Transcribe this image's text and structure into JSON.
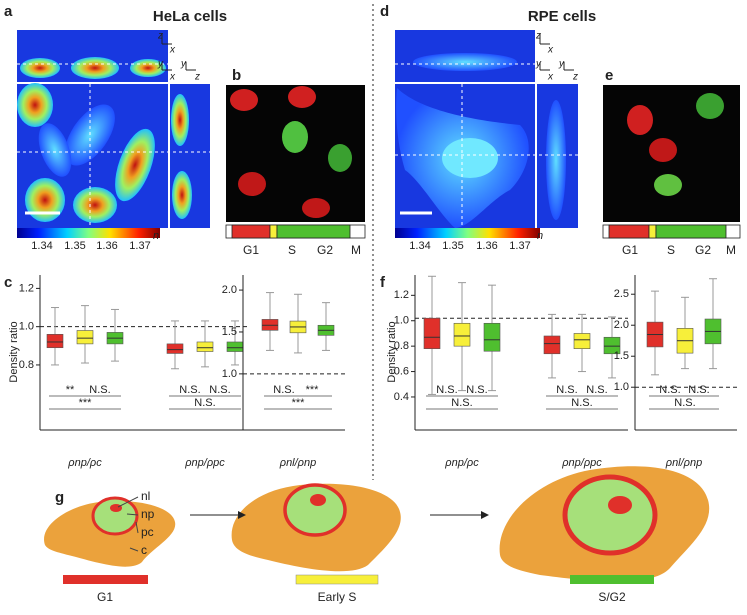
{
  "figure": {
    "panel_a": {
      "letter": "a",
      "title": "HeLa cells",
      "axes_xz": [
        "z",
        "x"
      ],
      "axes_yx": [
        "y",
        "x"
      ],
      "axes_yz": [
        "y",
        "z"
      ],
      "colorbar_ticks": [
        1.34,
        1.35,
        1.36,
        1.37
      ],
      "colorbar_unit": "n"
    },
    "panel_b": {
      "letter": "b",
      "phases": [
        "G1",
        "S",
        "G2",
        "M"
      ]
    },
    "panel_c": {
      "letter": "c"
    },
    "panel_d": {
      "letter": "d",
      "title": "RPE cells",
      "axes_xz": [
        "z",
        "x"
      ],
      "axes_yx": [
        "y",
        "x"
      ],
      "axes_yz": [
        "y",
        "z"
      ],
      "colorbar_ticks": [
        1.34,
        1.35,
        1.36,
        1.37
      ],
      "colorbar_unit": "n"
    },
    "panel_e": {
      "letter": "e",
      "phases": [
        "G1",
        "S",
        "G2",
        "M"
      ]
    },
    "panel_f": {
      "letter": "f"
    },
    "panel_g": {
      "letter": "g",
      "compartments": [
        "nl",
        "np",
        "pc",
        "c"
      ],
      "stages": [
        "G1",
        "Early S",
        "S/G2"
      ]
    }
  },
  "chart_data": [
    {
      "type": "box",
      "ylabel": "Density ratio",
      "ylim": [
        0.46,
        1.27
      ],
      "yticks": [
        0.8,
        {
          "value": 1,
          "label": "1.0"
        },
        1.2
      ],
      "reference_line": 1,
      "colors": [
        "#e0302a",
        "#f7ef3a",
        "#4fbf2f"
      ],
      "categories": [
        "ρnp/ρc",
        "ρnp/ρpc"
      ],
      "boxes": [
        [
          {
            "median": 0.92,
            "q1": 0.89,
            "q3": 0.96,
            "low": 0.8,
            "high": 1.1
          },
          {
            "median": 0.94,
            "q1": 0.91,
            "q3": 0.98,
            "low": 0.81,
            "high": 1.11
          },
          {
            "median": 0.94,
            "q1": 0.91,
            "q3": 0.97,
            "low": 0.82,
            "high": 1.09
          }
        ],
        [
          {
            "median": 0.88,
            "q1": 0.86,
            "q3": 0.91,
            "low": 0.78,
            "high": 1.03
          },
          {
            "median": 0.89,
            "q1": 0.87,
            "q3": 0.92,
            "low": 0.79,
            "high": 1.03
          },
          {
            "median": 0.89,
            "q1": 0.87,
            "q3": 0.92,
            "low": 0.8,
            "high": 1.03
          }
        ]
      ],
      "significance": [
        [
          "**",
          "N.S.",
          "***"
        ],
        [
          "N.S.",
          "N.S.",
          "N.S."
        ]
      ]
    },
    {
      "type": "box",
      "ylim": [
        0.33,
        2.18
      ],
      "yticks": [
        {
          "value": 1,
          "label": "1.0"
        },
        1.5,
        {
          "value": 2,
          "label": "2.0"
        }
      ],
      "reference_line": 1,
      "colors": [
        "#e0302a",
        "#f7ef3a",
        "#4fbf2f"
      ],
      "categories": [
        "ρnl/ρnp"
      ],
      "boxes": [
        [
          {
            "median": 1.58,
            "q1": 1.52,
            "q3": 1.65,
            "low": 1.28,
            "high": 1.97
          },
          {
            "median": 1.56,
            "q1": 1.49,
            "q3": 1.63,
            "low": 1.25,
            "high": 1.95
          },
          {
            "median": 1.52,
            "q1": 1.46,
            "q3": 1.58,
            "low": 1.28,
            "high": 1.85
          }
        ]
      ],
      "significance": [
        [
          "N.S.",
          "***",
          "***"
        ]
      ]
    },
    {
      "type": "box",
      "ylabel": "Density ratio",
      "ylim": [
        0.14,
        1.36
      ],
      "yticks": [
        0.4,
        0.6,
        0.8,
        {
          "value": 1,
          "label": "1.0"
        },
        1.2
      ],
      "reference_line": 1.02,
      "colors": [
        "#e0302a",
        "#f7ef3a",
        "#4fbf2f"
      ],
      "categories": [
        "ρnp/ρc",
        "ρnp/ρpc"
      ],
      "boxes": [
        [
          {
            "median": 0.87,
            "q1": 0.78,
            "q3": 1.02,
            "low": 0.42,
            "high": 1.35
          },
          {
            "median": 0.88,
            "q1": 0.8,
            "q3": 0.98,
            "low": 0.45,
            "high": 1.3
          },
          {
            "median": 0.85,
            "q1": 0.76,
            "q3": 0.98,
            "low": 0.45,
            "high": 1.28
          }
        ],
        [
          {
            "median": 0.82,
            "q1": 0.74,
            "q3": 0.88,
            "low": 0.55,
            "high": 1.05
          },
          {
            "median": 0.85,
            "q1": 0.78,
            "q3": 0.9,
            "low": 0.6,
            "high": 1.05
          },
          {
            "median": 0.8,
            "q1": 0.74,
            "q3": 0.87,
            "low": 0.55,
            "high": 1.03
          }
        ]
      ],
      "significance": [
        [
          "N.S.",
          "N.S.",
          "N.S."
        ],
        [
          "N.S.",
          "N.S.",
          "N.S."
        ]
      ]
    },
    {
      "type": "box",
      "ylim": [
        0.31,
        2.81
      ],
      "yticks": [
        {
          "value": 1,
          "label": "1.0"
        },
        1.5,
        {
          "value": 2,
          "label": "2.0"
        },
        2.5
      ],
      "reference_line": 1,
      "colors": [
        "#e0302a",
        "#f7ef3a",
        "#4fbf2f"
      ],
      "categories": [
        "ρnl/ρnp"
      ],
      "boxes": [
        [
          {
            "median": 1.85,
            "q1": 1.65,
            "q3": 2.05,
            "low": 1.2,
            "high": 2.55
          },
          {
            "median": 1.75,
            "q1": 1.55,
            "q3": 1.95,
            "low": 1.3,
            "high": 2.45
          },
          {
            "median": 1.9,
            "q1": 1.7,
            "q3": 2.1,
            "low": 1.3,
            "high": 2.75
          }
        ]
      ],
      "significance": [
        [
          "N.S.",
          "N.S.",
          "N.S."
        ]
      ]
    }
  ]
}
